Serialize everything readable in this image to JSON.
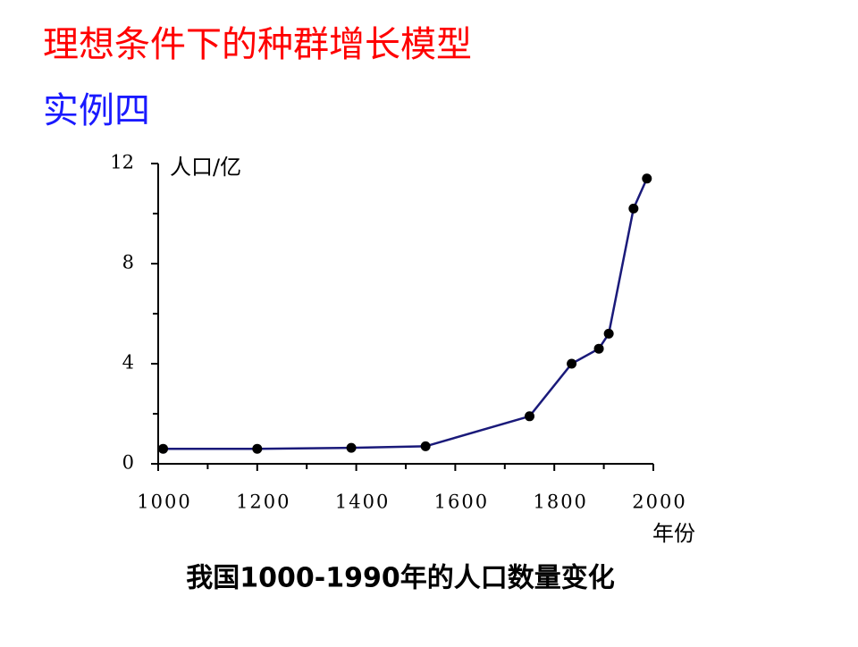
{
  "slide": {
    "title": "理想条件下的种群增长模型",
    "subtitle": "实例四"
  },
  "chart_data": {
    "type": "line",
    "title": "我国1000-1990年的人口数量变化",
    "y_label": "人口/亿",
    "x_label": "年份",
    "x": [
      1010,
      1200,
      1390,
      1540,
      1750,
      1835,
      1890,
      1910,
      1960,
      1987
    ],
    "series": [
      {
        "color": "#1a1a7a",
        "marker_color": "#000000",
        "values": [
          0.6,
          0.6,
          0.64,
          0.7,
          1.9,
          4.0,
          4.6,
          5.2,
          10.2,
          11.4
        ]
      }
    ],
    "xlim": [
      1000,
      2000
    ],
    "xticks": [
      1000,
      1200,
      1400,
      1600,
      1800,
      2000
    ],
    "xminorticks": [
      1100,
      1300,
      1500,
      1700,
      1900
    ],
    "ylim": [
      0,
      12
    ],
    "yticks": [
      0,
      4,
      8,
      12
    ],
    "yminorticks": [
      2,
      6,
      10
    ]
  }
}
